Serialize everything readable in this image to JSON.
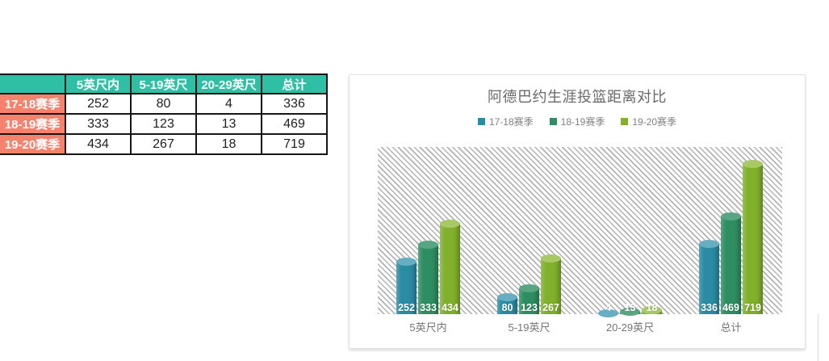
{
  "colors": {
    "header_bg": "#2fbfa4",
    "row_header_bg": "#f5826c",
    "table_border": "#161616",
    "title_color": "#696969",
    "legend_color": "#808080",
    "axis_color": "#757575",
    "hatch_line": "#b3b3b3"
  },
  "table": {
    "corner_label": "",
    "columns": [
      "5英尺内",
      "5-19英尺",
      "20-29英尺",
      "总计"
    ],
    "rows": [
      {
        "label": "17-18赛季",
        "values": [
          "252",
          "80",
          "4",
          "336"
        ]
      },
      {
        "label": "18-19赛季",
        "values": [
          "333",
          "123",
          "13",
          "469"
        ]
      },
      {
        "label": "19-20赛季",
        "values": [
          "434",
          "267",
          "18",
          "719"
        ]
      }
    ]
  },
  "chart_data": {
    "type": "bar",
    "title": "阿德巴约生涯投篮距离对比",
    "categories": [
      "5英尺内",
      "5-19英尺",
      "20-29英尺",
      "总计"
    ],
    "series": [
      {
        "name": "17-18赛季",
        "color": "#2a8ba2",
        "cap_color": "#68aec2",
        "values": [
          252,
          80,
          4,
          336
        ]
      },
      {
        "name": "18-19赛季",
        "color": "#2e8e61",
        "cap_color": "#58a583",
        "values": [
          333,
          123,
          13,
          469
        ]
      },
      {
        "name": "19-20赛季",
        "color": "#80b02c",
        "cap_color": "#a9c966",
        "values": [
          434,
          267,
          18,
          719
        ]
      }
    ],
    "ylim": [
      0,
      800
    ],
    "legend_position": "top",
    "grid": false,
    "plot_background": "diagonal-hatch",
    "data_labels": "inside-base, white",
    "bar_style": "cylinder"
  }
}
